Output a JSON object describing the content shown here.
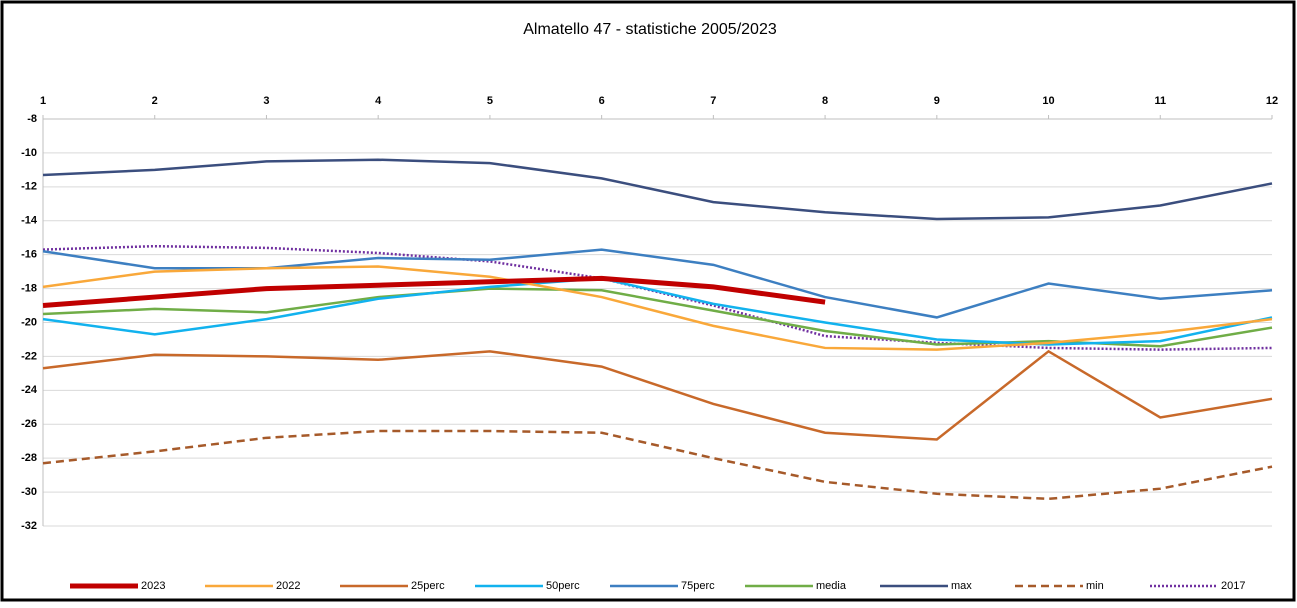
{
  "chart_data": {
    "type": "line",
    "title": "Almatello 47 - statistiche 2005/2023",
    "x": [
      1,
      2,
      3,
      4,
      5,
      6,
      7,
      8,
      9,
      10,
      11,
      12
    ],
    "xlim": [
      1,
      12
    ],
    "xticks": [
      1,
      2,
      3,
      4,
      5,
      6,
      7,
      8,
      9,
      10,
      11,
      12
    ],
    "ylim": [
      -32,
      -8
    ],
    "yticks": [
      -8,
      -10,
      -12,
      -14,
      -16,
      -18,
      -20,
      -22,
      -24,
      -26,
      -28,
      -30,
      -32
    ],
    "grid": true,
    "legend": "bottom",
    "series": [
      {
        "name": "2023",
        "color": "#c00000",
        "line_style": "bold",
        "values": [
          -19.0,
          -18.5,
          -18.0,
          -17.8,
          -17.6,
          -17.4,
          -17.9,
          -18.8,
          null,
          null,
          null,
          null
        ]
      },
      {
        "name": "2022",
        "color": "#f9a83a",
        "line_style": "solid",
        "values": [
          -17.9,
          -17.0,
          -16.8,
          -16.7,
          -17.3,
          -18.5,
          -20.2,
          -21.5,
          -21.6,
          -21.2,
          -20.6,
          -19.8
        ]
      },
      {
        "name": "25perc",
        "color": "#c8692a",
        "line_style": "solid",
        "values": [
          -22.7,
          -21.9,
          -22.0,
          -22.2,
          -21.7,
          -22.6,
          -24.8,
          -26.5,
          -26.9,
          -21.7,
          -25.6,
          -24.5
        ]
      },
      {
        "name": "50perc",
        "color": "#12b2ee",
        "line_style": "solid",
        "values": [
          -19.8,
          -20.7,
          -19.8,
          -18.6,
          -17.9,
          -17.4,
          -18.9,
          -20.0,
          -21.0,
          -21.3,
          -21.1,
          -19.7
        ]
      },
      {
        "name": "75perc",
        "color": "#3d7fc1",
        "line_style": "solid",
        "values": [
          -15.8,
          -16.8,
          -16.8,
          -16.2,
          -16.3,
          -15.7,
          -16.6,
          -18.5,
          -19.7,
          -17.7,
          -18.6,
          -18.1
        ]
      },
      {
        "name": "media",
        "color": "#70ad47",
        "line_style": "solid",
        "values": [
          -19.5,
          -19.2,
          -19.4,
          -18.5,
          -18.0,
          -18.1,
          -19.3,
          -20.5,
          -21.3,
          -21.1,
          -21.4,
          -20.3
        ]
      },
      {
        "name": "max",
        "color": "#3b4e7e",
        "line_style": "solid",
        "values": [
          -11.3,
          -11.0,
          -10.5,
          -10.4,
          -10.6,
          -11.5,
          -12.9,
          -13.5,
          -13.9,
          -13.8,
          -13.1,
          -11.8
        ]
      },
      {
        "name": "min",
        "color": "#a65a2a",
        "line_style": "dashed",
        "values": [
          -28.3,
          -27.6,
          -26.8,
          -26.4,
          -26.4,
          -26.5,
          -28.0,
          -29.4,
          -30.1,
          -30.4,
          -29.8,
          -28.5
        ]
      },
      {
        "name": "2017",
        "color": "#7030a0",
        "line_style": "dotted",
        "values": [
          -15.7,
          -15.5,
          -15.6,
          -15.9,
          -16.4,
          -17.4,
          -19.0,
          -20.8,
          -21.2,
          -21.5,
          -21.6,
          -21.5
        ]
      }
    ]
  }
}
